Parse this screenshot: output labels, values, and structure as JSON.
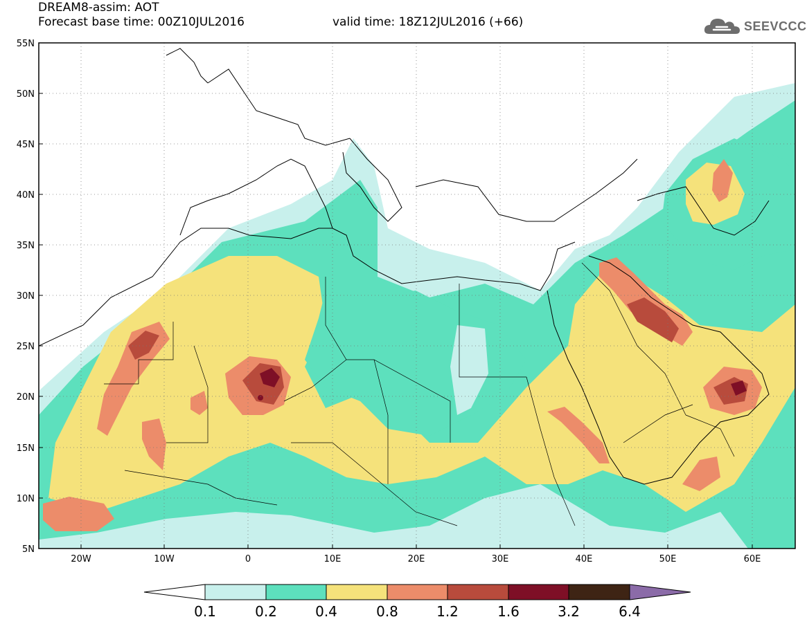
{
  "header": {
    "title_line1": "DREAM8-assim: AOT",
    "base_time": "Forecast base time: 00Z10JUL2016",
    "valid_time": "valid time: 18Z12JUL2016 (+66)"
  },
  "logo": {
    "text": "SEEVCCC",
    "icon": "cloud-icon",
    "color": "#6d6d6d"
  },
  "map": {
    "lat_labels": [
      "55N",
      "50N",
      "45N",
      "40N",
      "35N",
      "30N",
      "25N",
      "20N",
      "15N",
      "10N",
      "5N"
    ],
    "lon_labels": [
      "20W",
      "10W",
      "0",
      "10E",
      "20E",
      "30E",
      "40E",
      "50E",
      "60E"
    ],
    "lon_range": [
      "25W",
      "65E"
    ],
    "lat_range": [
      "5N",
      "55N"
    ],
    "grid": "dotted"
  },
  "colorbar": {
    "labels": [
      "0.1",
      "0.2",
      "0.4",
      "0.8",
      "1.2",
      "1.6",
      "3.2",
      "6.4"
    ],
    "colors": [
      "#ffffff",
      "#c8f0ec",
      "#5de0bd",
      "#f5e27b",
      "#ec8c6a",
      "#b84b3c",
      "#7e0f26",
      "#3e2414",
      "#8b6ba8"
    ]
  },
  "fill_colors": {
    "light_cyan": "#c8f0ec",
    "green": "#5de0bd",
    "yellow": "#f5e27b",
    "salmon": "#ec8c6a",
    "brown_red": "#b84b3c",
    "dark_red": "#7e0f26"
  }
}
